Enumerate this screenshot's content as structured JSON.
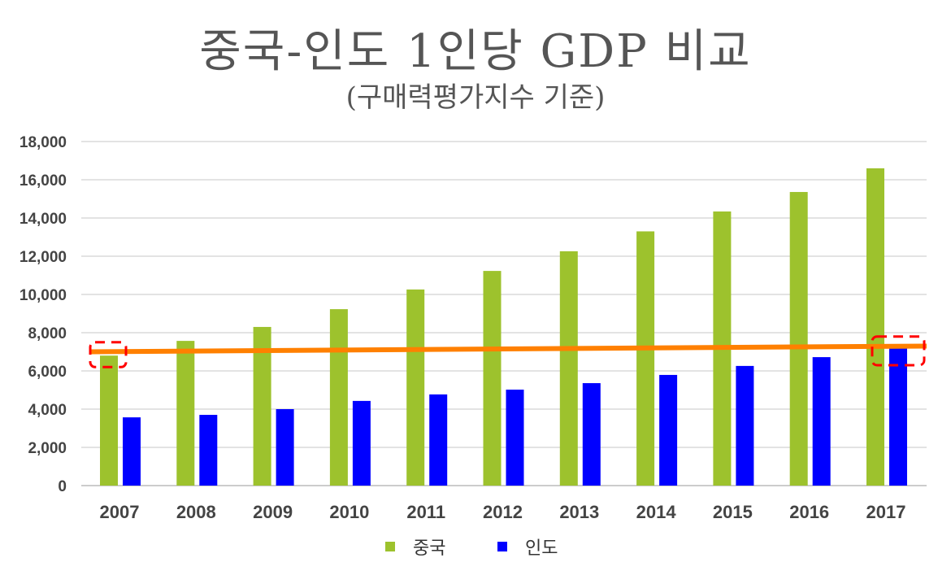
{
  "chart_data": {
    "type": "bar",
    "title": "중국-인도 1인당 GDP 비교",
    "subtitle": "(구매력평가지수 기준)",
    "xlabel": "",
    "ylabel": "",
    "categories": [
      "2007",
      "2008",
      "2009",
      "2010",
      "2011",
      "2012",
      "2013",
      "2014",
      "2015",
      "2016",
      "2017"
    ],
    "series": [
      {
        "name": "중국",
        "color": "#9dc22d",
        "values": [
          6800,
          7570,
          8300,
          9230,
          10260,
          11230,
          12260,
          13300,
          14340,
          15360,
          16600
        ]
      },
      {
        "name": "인도",
        "color": "#0000ff",
        "values": [
          3570,
          3700,
          4000,
          4430,
          4770,
          5020,
          5360,
          5790,
          6260,
          6720,
          7230
        ]
      }
    ],
    "ylim": [
      0,
      18000
    ],
    "yticks": [
      "0",
      "2,000",
      "4,000",
      "6,000",
      "8,000",
      "10,000",
      "12,000",
      "14,000",
      "16,000",
      "18,000"
    ],
    "grid": true,
    "legend_position": "bottom",
    "annotations": {
      "trend_line": {
        "color": "#ff8000",
        "from": {
          "x": "2007",
          "y": 7000
        },
        "to": {
          "x": "2017",
          "y": 7300
        }
      },
      "highlight_boxes": {
        "color": "#ff0000",
        "style": "dashed",
        "targets": [
          "2007 중국",
          "2017 인도"
        ]
      }
    }
  }
}
